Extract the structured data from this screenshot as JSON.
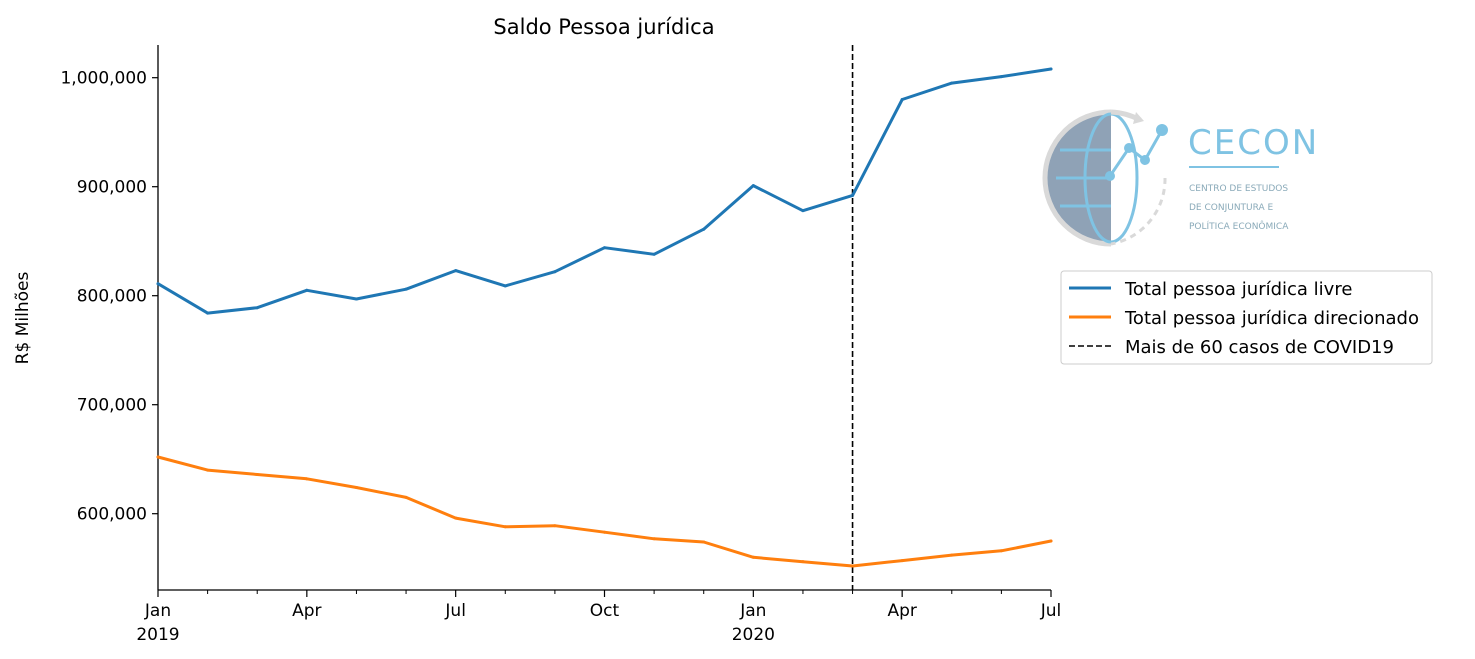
{
  "chart_data": {
    "type": "line",
    "title": "Saldo Pessoa jurídica",
    "ylabel": "R$ Milhões",
    "xlabel": "",
    "x": [
      "2019-01",
      "2019-02",
      "2019-03",
      "2019-04",
      "2019-05",
      "2019-06",
      "2019-07",
      "2019-08",
      "2019-09",
      "2019-10",
      "2019-11",
      "2019-12",
      "2020-01",
      "2020-02",
      "2020-03",
      "2020-04",
      "2020-05",
      "2020-06",
      "2020-07"
    ],
    "xlim": [
      "2019-01",
      "2020-07"
    ],
    "ylim": [
      530000,
      1030000
    ],
    "yticks": [
      600000,
      700000,
      800000,
      900000,
      1000000
    ],
    "ytick_labels": [
      "600,000",
      "700,000",
      "800,000",
      "900,000",
      "1,000,000"
    ],
    "xticks": [
      {
        "month": "2019-01",
        "label": "Jan",
        "sublabel": "2019"
      },
      {
        "month": "2019-04",
        "label": "Apr",
        "sublabel": ""
      },
      {
        "month": "2019-07",
        "label": "Jul",
        "sublabel": ""
      },
      {
        "month": "2019-10",
        "label": "Oct",
        "sublabel": ""
      },
      {
        "month": "2020-01",
        "label": "Jan",
        "sublabel": "2020"
      },
      {
        "month": "2020-04",
        "label": "Apr",
        "sublabel": ""
      },
      {
        "month": "2020-07",
        "label": "Jul",
        "sublabel": ""
      }
    ],
    "series": [
      {
        "name": "Total pessoa jurídica livre",
        "color": "#1f77b4",
        "values": [
          811000,
          784000,
          789000,
          805000,
          797000,
          806000,
          823000,
          809000,
          822000,
          844000,
          838000,
          861000,
          901000,
          878000,
          892000,
          980000,
          995000,
          1001000,
          1008000
        ]
      },
      {
        "name": "Total pessoa jurídica direcionado",
        "color": "#ff7f0e",
        "values": [
          652000,
          640000,
          636000,
          632000,
          624000,
          615000,
          596000,
          588000,
          589000,
          583000,
          577000,
          574000,
          560000,
          556000,
          552000,
          557000,
          562000,
          566000,
          575000
        ]
      }
    ],
    "annotations": [
      {
        "type": "vline",
        "month": "2020-03",
        "style": "dashed",
        "color": "#000000",
        "label": "Mais de 60 casos de COVID19"
      }
    ],
    "grid": false,
    "legend": "right"
  },
  "logo": {
    "name": "CECON",
    "subtitle_lines": [
      "CENTRO DE ESTUDOS",
      "DE CONJUNTURA E",
      "POLÍTICA ECONÔMICA"
    ],
    "color": "#7fc3e3"
  }
}
